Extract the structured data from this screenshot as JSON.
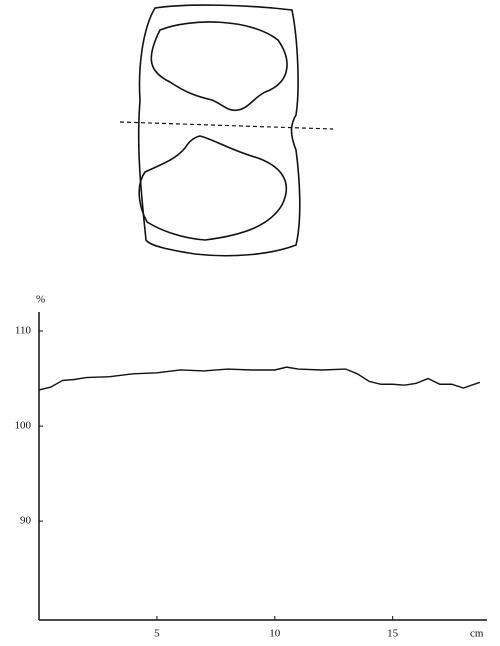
{
  "chart_data": {
    "type": "line",
    "ylabel": "%",
    "xlabel": "cm",
    "x": [
      0,
      0.5,
      1,
      1.5,
      2,
      3,
      4,
      5,
      6,
      7,
      8,
      9,
      10,
      10.5,
      11,
      12,
      13,
      13.5,
      14,
      14.5,
      15,
      15.5,
      16,
      16.5,
      17,
      17.5,
      18,
      18.7
    ],
    "values": [
      103.8,
      104.1,
      104.8,
      104.9,
      105.1,
      105.2,
      105.5,
      105.6,
      105.9,
      105.8,
      106.0,
      105.9,
      105.9,
      106.2,
      106.0,
      105.9,
      106.0,
      105.5,
      104.7,
      104.4,
      104.4,
      104.3,
      104.5,
      105.0,
      104.4,
      104.4,
      104.0,
      104.6
    ],
    "color": "#111111",
    "xlim": [
      0,
      19
    ],
    "ylim": [
      79.6,
      112
    ],
    "xticks": [
      5,
      10,
      15
    ],
    "yticks": [
      90,
      100,
      110
    ],
    "grid": false
  }
}
